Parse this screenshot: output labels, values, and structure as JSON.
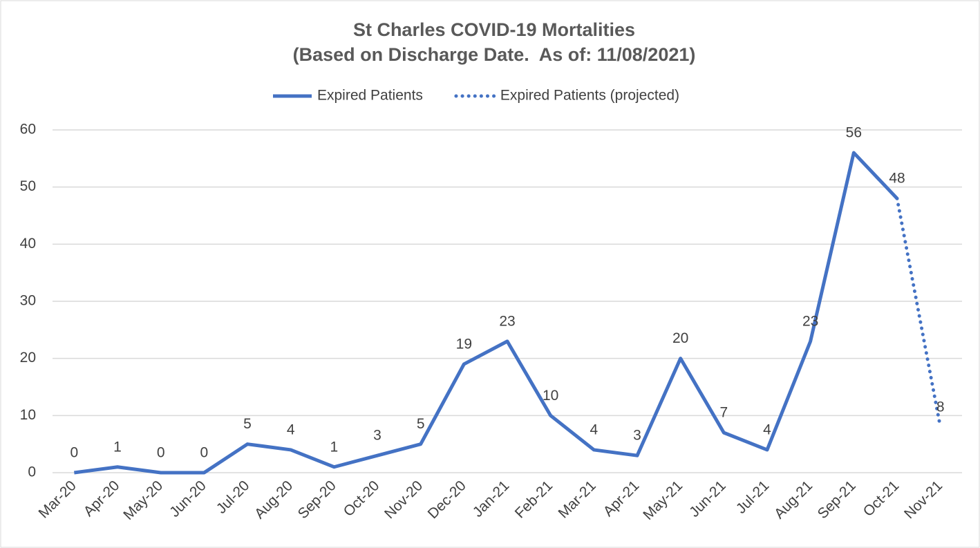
{
  "chart_data": {
    "type": "line",
    "title": "St Charles COVID-19 Mortalities",
    "subtitle": "(Based on Discharge Date.  As of: 11/08/2021)",
    "categories": [
      "Mar-20",
      "Apr-20",
      "May-20",
      "Jun-20",
      "Jul-20",
      "Aug-20",
      "Sep-20",
      "Oct-20",
      "Nov-20",
      "Dec-20",
      "Jan-21",
      "Feb-21",
      "Mar-21",
      "Apr-21",
      "May-21",
      "Jun-21",
      "Jul-21",
      "Aug-21",
      "Sep-21",
      "Oct-21",
      "Nov-21"
    ],
    "series": [
      {
        "name": "Expired Patients",
        "color": "#4472c4",
        "line_style": "solid",
        "values": [
          0,
          1,
          0,
          0,
          5,
          4,
          1,
          3,
          5,
          19,
          23,
          10,
          4,
          3,
          20,
          7,
          4,
          23,
          56,
          48,
          null
        ]
      },
      {
        "name": "Expired Patients (projected)",
        "color": "#4472c4",
        "line_style": "dotted",
        "values": [
          null,
          null,
          null,
          null,
          null,
          null,
          null,
          null,
          null,
          null,
          null,
          null,
          null,
          null,
          null,
          null,
          null,
          null,
          null,
          48,
          8
        ]
      }
    ],
    "ylim": [
      0,
      60
    ],
    "yticks": [
      0,
      10,
      20,
      30,
      40,
      50,
      60
    ],
    "grid": true,
    "legend": "top"
  }
}
